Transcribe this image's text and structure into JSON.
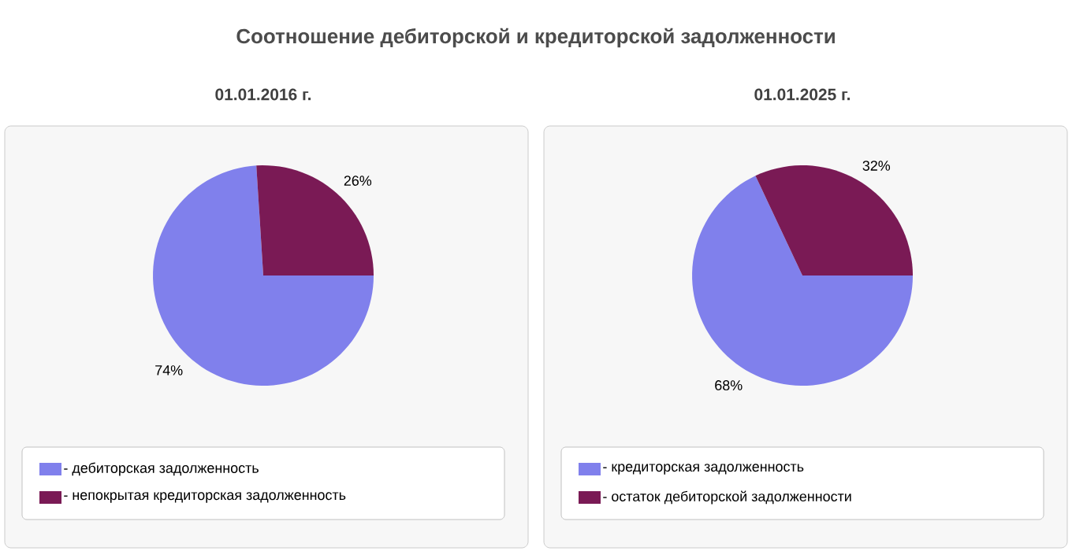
{
  "chart_data": [
    {
      "type": "pie",
      "title": "Соотношение дебиторской и кредиторской задолженности",
      "subtitle": "01.01.2016 г.",
      "categories": [
        "- дебиторская задолженность",
        "- непокрытая кредиторская задолженность"
      ],
      "values": [
        74,
        26
      ],
      "value_labels": [
        "74%",
        "26%"
      ],
      "colors": [
        "#8080ec",
        "#7a1a55"
      ],
      "legend": "bottom"
    },
    {
      "type": "pie",
      "subtitle": "01.01.2025 г.",
      "categories": [
        "- кредиторская задолженность",
        "- остаток дебиторской задолженности"
      ],
      "values": [
        68,
        32
      ],
      "value_labels": [
        "68%",
        "32%"
      ],
      "colors": [
        "#8080ec",
        "#7a1a55"
      ],
      "legend": "bottom"
    }
  ]
}
